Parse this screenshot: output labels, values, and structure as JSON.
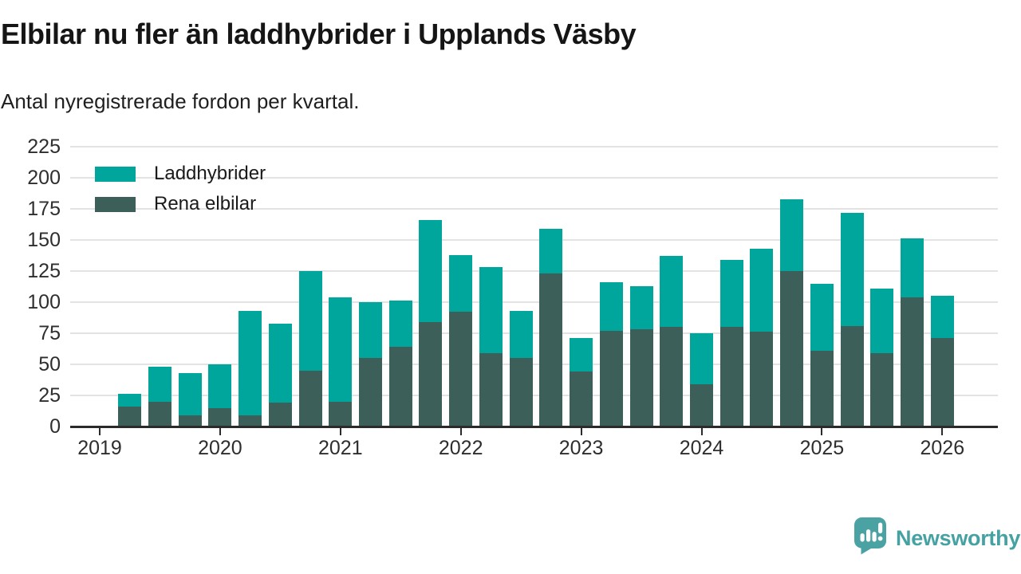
{
  "header": {
    "title": "Elbilar nu fler än laddhybrider i Upplands Väsby",
    "subtitle": "Antal nyregistrerade fordon per kvartal."
  },
  "legend": {
    "items": [
      {
        "label": "Laddhybrider",
        "color": "#00A69C"
      },
      {
        "label": "Rena elbilar",
        "color": "#3D5F59"
      }
    ]
  },
  "footer": {
    "brand": "Newsworthy",
    "brand_color": "#46A2A2",
    "logo_icon": "newsworthy-speech-bubble-bar-chart-icon"
  },
  "chart_data": {
    "type": "bar",
    "stacked": true,
    "title": "Elbilar nu fler än laddhybrider i Upplands Väsby",
    "subtitle": "Antal nyregistrerade fordon per kvartal.",
    "xlabel": "",
    "ylabel": "",
    "ylim": [
      0,
      225
    ],
    "y_ticks": [
      0,
      25,
      50,
      75,
      100,
      125,
      150,
      175,
      200,
      225
    ],
    "grid": "horizontal",
    "legend_position": "top-left-inside",
    "axis_color": "#2B2B2B",
    "grid_color": "#E3E3E3",
    "tick_text_color": "#2E2E2E",
    "x_year_ticks": [
      "2019",
      "2020",
      "2021",
      "2022",
      "2023",
      "2024",
      "2025",
      "2026"
    ],
    "categories": [
      "2019-Q2",
      "2019-Q3",
      "2019-Q4",
      "2020-Q1",
      "2020-Q2",
      "2020-Q3",
      "2020-Q4",
      "2021-Q1",
      "2021-Q2",
      "2021-Q3",
      "2021-Q4",
      "2022-Q1",
      "2022-Q2",
      "2022-Q3",
      "2022-Q4",
      "2023-Q1",
      "2023-Q2",
      "2023-Q3",
      "2023-Q4",
      "2024-Q1",
      "2024-Q2",
      "2024-Q3",
      "2024-Q4",
      "2025-Q1",
      "2025-Q2",
      "2025-Q3",
      "2025-Q4",
      "2026-Q1"
    ],
    "series": [
      {
        "name": "Rena elbilar",
        "color": "#3D5F59",
        "stack_order": "bottom",
        "values": [
          16,
          20,
          9,
          15,
          9,
          19,
          45,
          20,
          55,
          64,
          84,
          92,
          59,
          55,
          123,
          44,
          77,
          78,
          80,
          34,
          80,
          76,
          125,
          61,
          81,
          59,
          104,
          71
        ]
      },
      {
        "name": "Laddhybrider",
        "color": "#00A69C",
        "stack_order": "top",
        "values": [
          10,
          28,
          34,
          35,
          84,
          64,
          80,
          84,
          45,
          37,
          82,
          46,
          69,
          38,
          36,
          27,
          39,
          35,
          57,
          41,
          54,
          67,
          58,
          54,
          91,
          52,
          47,
          34
        ]
      }
    ],
    "totals": [
      26,
      48,
      43,
      50,
      93,
      83,
      125,
      104,
      100,
      101,
      166,
      138,
      128,
      93,
      159,
      71,
      116,
      113,
      137,
      75,
      134,
      143,
      183,
      115,
      172,
      111,
      151,
      105
    ]
  }
}
